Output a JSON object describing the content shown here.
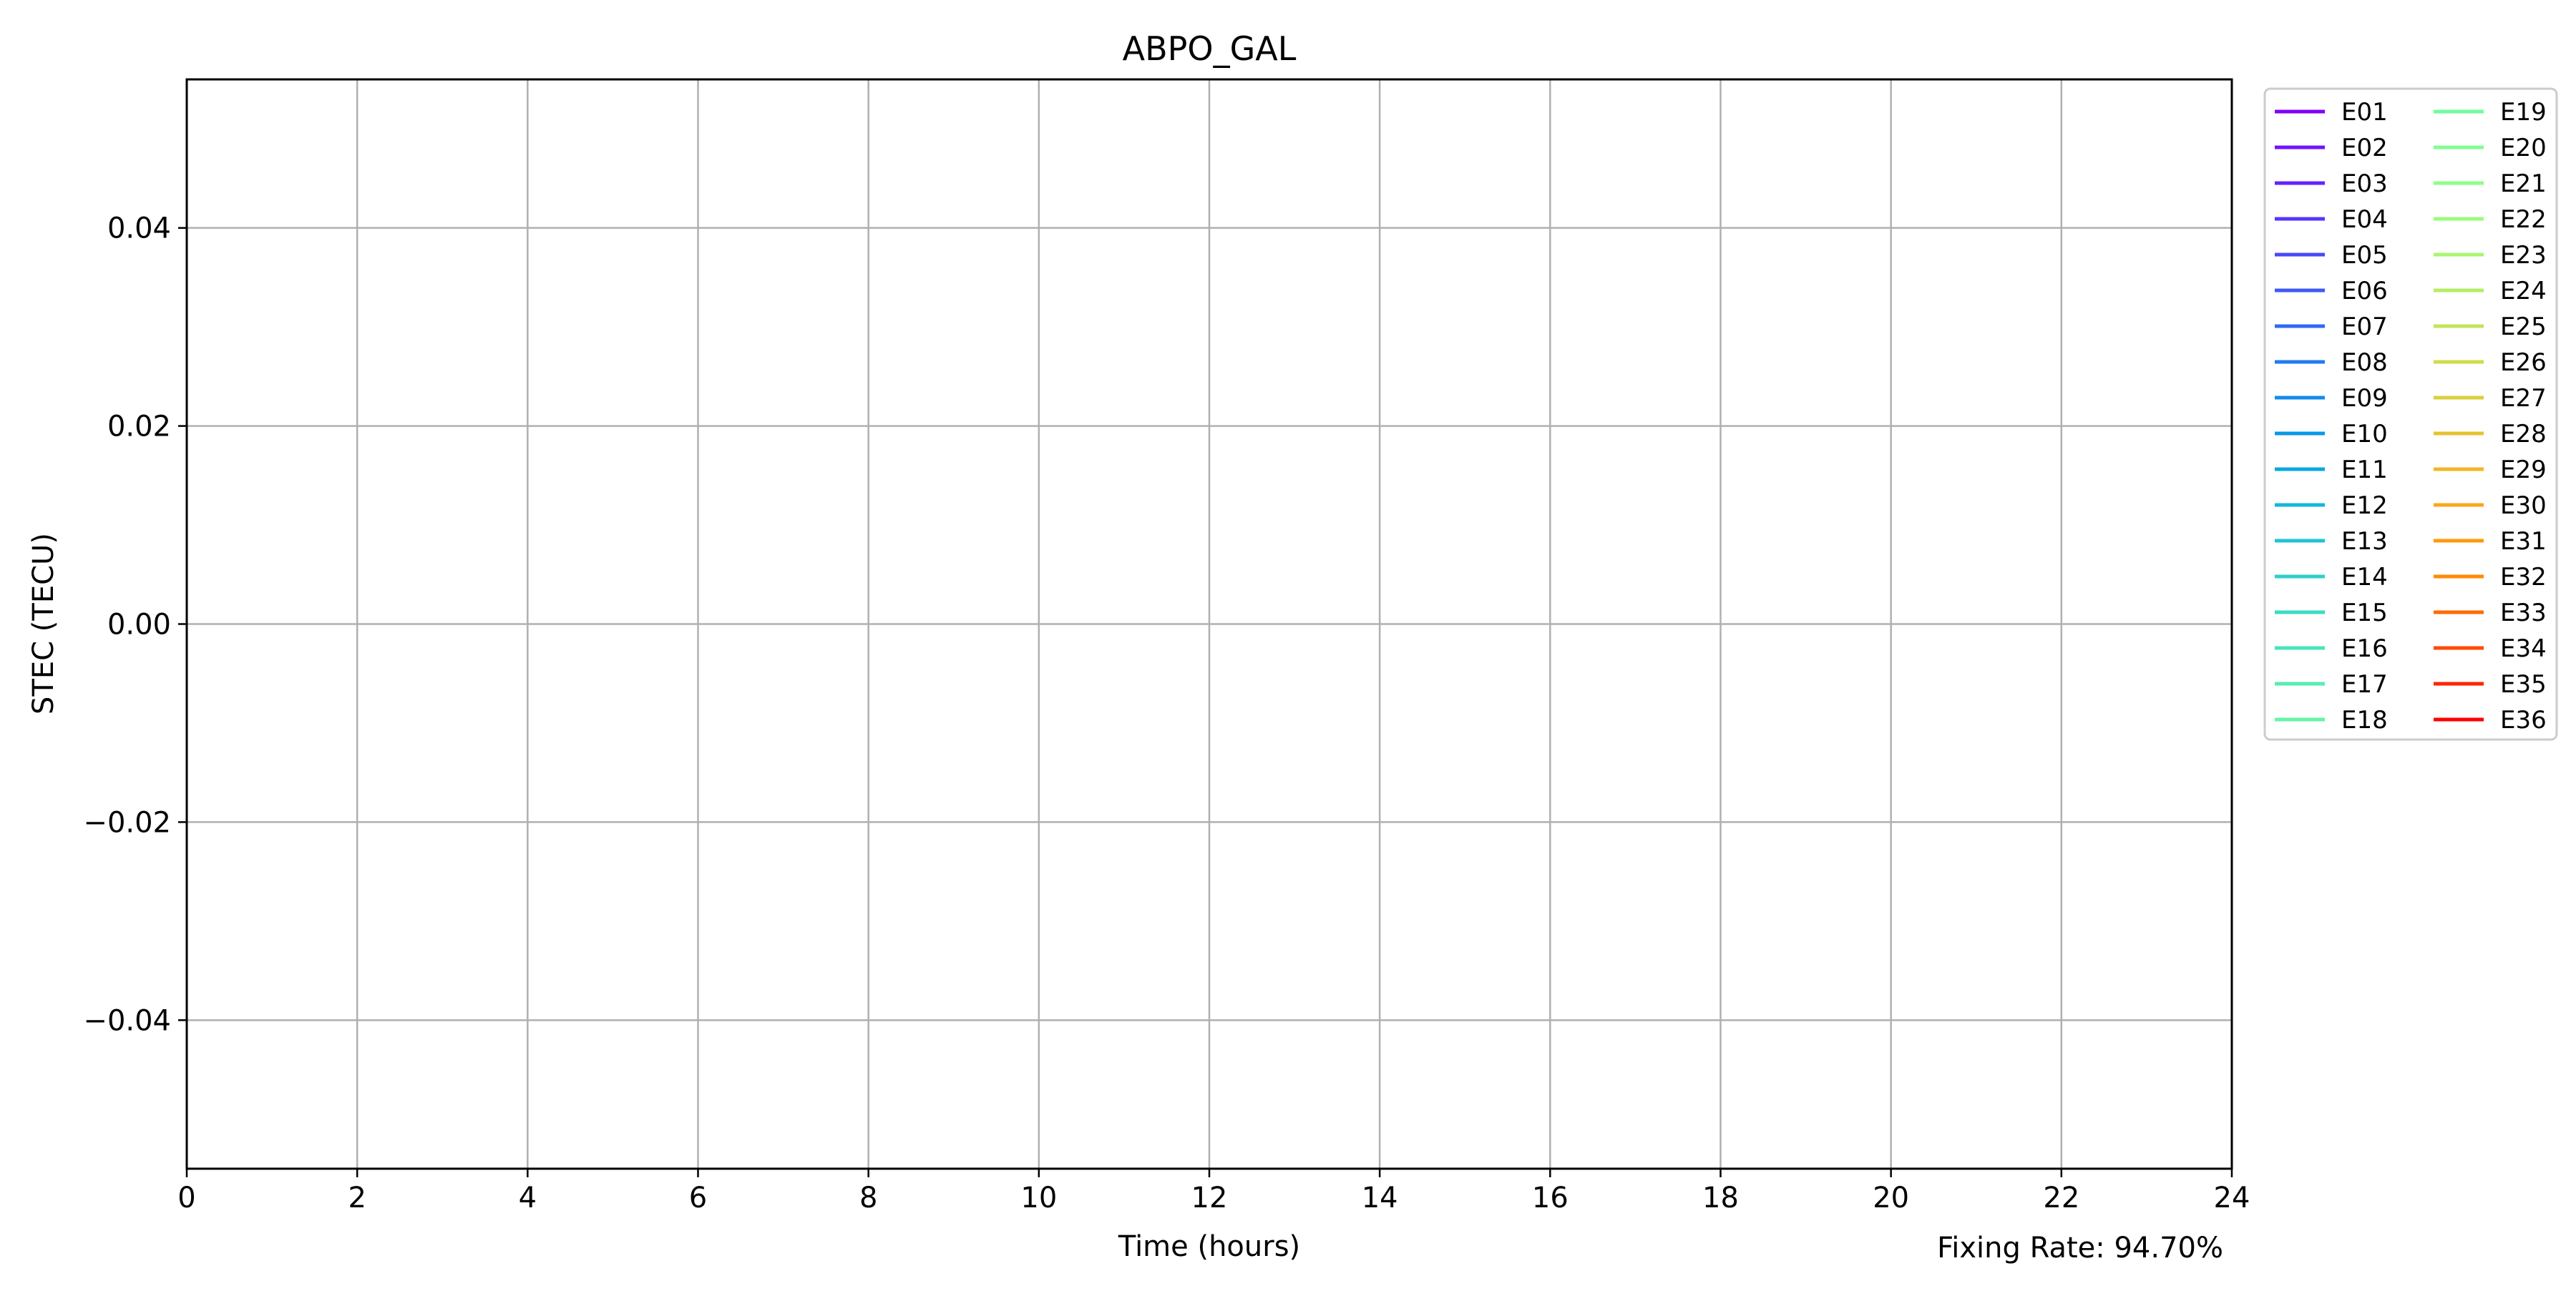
{
  "chart_data": {
    "type": "line",
    "title": "ABPO_GAL",
    "xlabel": "Time (hours)",
    "ylabel": "STEC (TECU)",
    "xlim": [
      0,
      24
    ],
    "ylim": [
      -0.055,
      0.055
    ],
    "xticks": [
      0,
      2,
      4,
      6,
      8,
      10,
      12,
      14,
      16,
      18,
      20,
      22,
      24
    ],
    "xtick_labels": [
      "0",
      "2",
      "4",
      "6",
      "8",
      "10",
      "12",
      "14",
      "16",
      "18",
      "20",
      "22",
      "24"
    ],
    "yticks": [
      0.04,
      0.02,
      0.0,
      -0.02,
      -0.04
    ],
    "ytick_labels": [
      "0.04",
      "0.02",
      "0.00",
      "−0.02",
      "−0.04"
    ],
    "grid": true,
    "legend_placement": "outside-right",
    "legend_columns": 2,
    "annotation": "Fixing Rate: 94.70%",
    "series": [
      {
        "name": "E01",
        "color": "#7f00ff",
        "values": []
      },
      {
        "name": "E02",
        "color": "#7212ff",
        "values": []
      },
      {
        "name": "E03",
        "color": "#6424fe",
        "values": []
      },
      {
        "name": "E04",
        "color": "#5736fd",
        "values": []
      },
      {
        "name": "E05",
        "color": "#4a48fb",
        "values": []
      },
      {
        "name": "E06",
        "color": "#3c59f8",
        "values": []
      },
      {
        "name": "E07",
        "color": "#2f6af5",
        "values": []
      },
      {
        "name": "E08",
        "color": "#227af1",
        "values": []
      },
      {
        "name": "E09",
        "color": "#148aec",
        "values": []
      },
      {
        "name": "E10",
        "color": "#0799e7",
        "values": []
      },
      {
        "name": "E11",
        "color": "#06a8e1",
        "values": []
      },
      {
        "name": "E12",
        "color": "#14b6da",
        "values": []
      },
      {
        "name": "E13",
        "color": "#22c3d3",
        "values": []
      },
      {
        "name": "E14",
        "color": "#2fcfcb",
        "values": []
      },
      {
        "name": "E15",
        "color": "#3cdbc3",
        "values": []
      },
      {
        "name": "E16",
        "color": "#4ae5ba",
        "values": []
      },
      {
        "name": "E17",
        "color": "#57eeb1",
        "values": []
      },
      {
        "name": "E18",
        "color": "#64f5a7",
        "values": []
      },
      {
        "name": "E19",
        "color": "#72fb9d",
        "values": []
      },
      {
        "name": "E20",
        "color": "#80ff92",
        "values": []
      },
      {
        "name": "E21",
        "color": "#8eff87",
        "values": []
      },
      {
        "name": "E22",
        "color": "#9bfb7c",
        "values": []
      },
      {
        "name": "E23",
        "color": "#a9f570",
        "values": []
      },
      {
        "name": "E24",
        "color": "#b6ee64",
        "values": []
      },
      {
        "name": "E25",
        "color": "#c3e558",
        "values": []
      },
      {
        "name": "E26",
        "color": "#cfdb4c",
        "values": []
      },
      {
        "name": "E27",
        "color": "#dbcf3f",
        "values": []
      },
      {
        "name": "E28",
        "color": "#e6c333",
        "values": []
      },
      {
        "name": "E29",
        "color": "#f1b626",
        "values": []
      },
      {
        "name": "E30",
        "color": "#f9a819",
        "values": []
      },
      {
        "name": "E31",
        "color": "#ff990d",
        "values": []
      },
      {
        "name": "E32",
        "color": "#ff8a00",
        "values": []
      },
      {
        "name": "E33",
        "color": "#ff6a00",
        "values": []
      },
      {
        "name": "E34",
        "color": "#ff4a00",
        "values": []
      },
      {
        "name": "E35",
        "color": "#ff2500",
        "values": []
      },
      {
        "name": "E36",
        "color": "#ff0000",
        "values": []
      }
    ]
  }
}
